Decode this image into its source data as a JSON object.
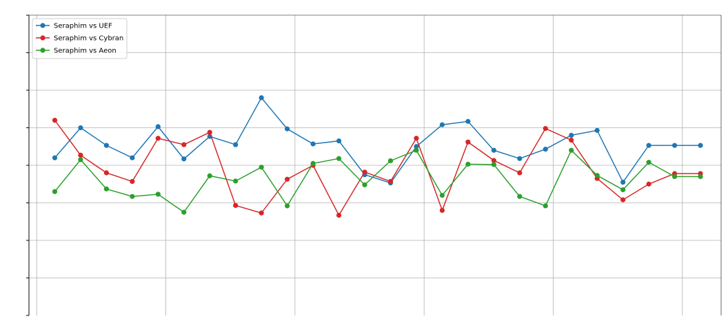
{
  "chart_data": {
    "type": "line",
    "title": "",
    "xlabel": "",
    "ylabel": "",
    "x": [
      1,
      2,
      3,
      4,
      5,
      6,
      7,
      8,
      9,
      10,
      11,
      12,
      13,
      14,
      15,
      16,
      17,
      18,
      19,
      20,
      21,
      22,
      23,
      24,
      25,
      26
    ],
    "xlim": [
      0,
      26.8
    ],
    "ylim": [
      0,
      8
    ],
    "grid": true,
    "legend": {
      "placement": "top-left"
    },
    "series": [
      {
        "name": "Seraphim vs UEF",
        "color": "#1f77b4",
        "values": [
          4.2,
          5.0,
          4.53,
          4.2,
          5.03,
          4.17,
          4.77,
          4.55,
          5.8,
          4.97,
          4.57,
          4.65,
          3.75,
          3.53,
          4.5,
          5.08,
          5.17,
          4.4,
          4.18,
          4.43,
          4.8,
          4.93,
          3.55,
          4.53,
          4.53,
          4.53
        ]
      },
      {
        "name": "Seraphim vs Cybran",
        "color": "#d62728",
        "values": [
          5.2,
          4.27,
          3.8,
          3.57,
          4.72,
          4.55,
          4.88,
          2.93,
          2.73,
          3.63,
          4.0,
          2.67,
          3.82,
          3.57,
          4.72,
          2.8,
          4.62,
          4.13,
          3.8,
          4.98,
          4.67,
          3.65,
          3.08,
          3.5,
          3.78,
          3.78
        ]
      },
      {
        "name": "Seraphim vs Aeon",
        "color": "#2ca02c",
        "values": [
          3.3,
          4.15,
          3.37,
          3.17,
          3.23,
          2.75,
          3.72,
          3.58,
          3.95,
          2.92,
          4.05,
          4.18,
          3.48,
          4.12,
          4.4,
          3.2,
          4.03,
          4.02,
          3.17,
          2.92,
          4.4,
          3.73,
          3.35,
          4.08,
          3.7,
          3.7
        ]
      }
    ]
  }
}
